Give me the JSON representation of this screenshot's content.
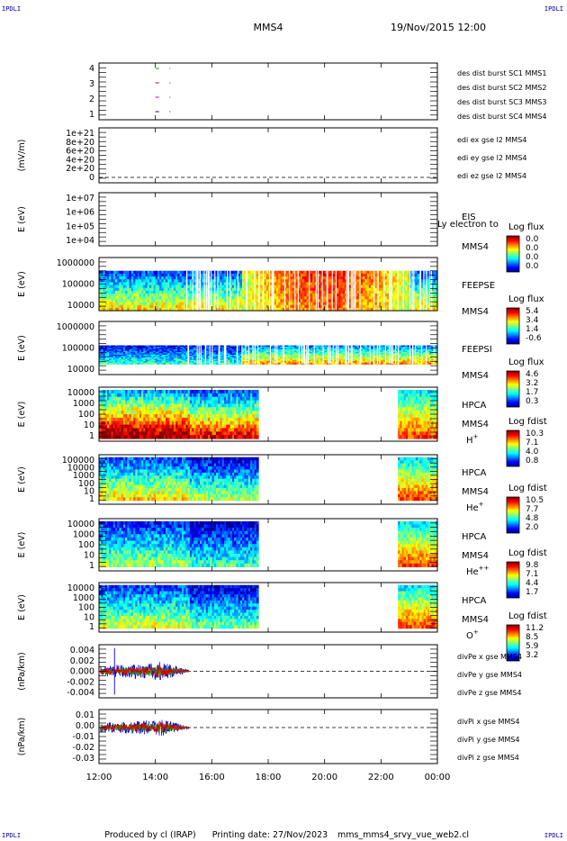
{
  "header": {
    "corner_tag": "IPDLI",
    "spacecraft": "MMS4",
    "date_time": "19/Nov/2015 12:00"
  },
  "footer": {
    "producer": "Produced by cl (IRAP)",
    "printing_date": "Printing date: 27/Nov/2023",
    "filename": "mms_mms4_srvy_vue_web2.cl"
  },
  "colors": {
    "mms1": "#0000cc",
    "mms2": "#cc00cc",
    "mms3": "#cc0000",
    "mms4": "#00aa00",
    "x_comp": "#dd0000",
    "y_comp": "#00bb00",
    "z_comp": "#0000cc"
  },
  "chart_data": {
    "type": "multi-panel time series",
    "x_ticks": [
      "12:00",
      "14:00",
      "16:00",
      "18:00",
      "20:00",
      "22:00",
      "00:00"
    ],
    "panels": [
      {
        "id": "burst",
        "ylabel": "",
        "yticks": [
          "4",
          "3",
          "2",
          "1"
        ],
        "legend": [
          {
            "text": "des dist burst SC1 MMS1",
            "color": "#0000cc"
          },
          {
            "text": "des dist burst SC2 MMS2",
            "color": "#cc00cc"
          },
          {
            "text": "des dist burst SC3 MMS3",
            "color": "#cc0000"
          },
          {
            "text": "des dist burst SC4 MMS4",
            "color": "#00aa00"
          }
        ],
        "marks": [
          {
            "sc": 4,
            "t": [
              14.0,
              14.5
            ]
          },
          {
            "sc": 3,
            "t": [
              14.0,
              14.5
            ]
          },
          {
            "sc": 2,
            "t": [
              14.0,
              14.5
            ]
          },
          {
            "sc": 1,
            "t": [
              14.0,
              14.5
            ]
          }
        ]
      },
      {
        "id": "edi",
        "ylabel": "(mV/m)",
        "yticks": [
          "1e+21",
          "8e+20",
          "6e+20",
          "4e+20",
          "2e+20",
          "0"
        ],
        "legend": [
          {
            "text": "edi ex gse l2 MMS4",
            "color": "#dd0000"
          },
          {
            "text": "edi ey gse l2 MMS4",
            "color": "#00bb00"
          },
          {
            "text": "edi ez gse l2 MMS4",
            "color": "#0000cc"
          }
        ]
      },
      {
        "id": "eis",
        "ylabel": "E (eV)",
        "yticks": [
          "1e+07",
          "1e+06",
          "1e+05",
          "1e+04"
        ],
        "right_labels": [
          "EIS",
          "MMS4"
        ],
        "overlay_text": "Ly electron to",
        "colorbar": {
          "title": "Log flux",
          "ticks": [
            "0.0",
            "0.0",
            "0.0",
            "0.0"
          ]
        }
      },
      {
        "id": "feepse",
        "ylabel": "E (eV)",
        "yticks": [
          "1000000",
          "100000",
          "10000"
        ],
        "right_labels": [
          "FEEPSE",
          "MMS4"
        ],
        "colorbar": {
          "title": "Log flux",
          "ticks": [
            "5.4",
            "3.4",
            "1.4",
            "-0.6"
          ]
        }
      },
      {
        "id": "feepsi",
        "ylabel": "E (eV)",
        "yticks": [
          "1000000",
          "100000",
          "10000"
        ],
        "right_labels": [
          "FEEPSI",
          "MMS4"
        ],
        "colorbar": {
          "title": "Log flux",
          "ticks": [
            "4.6",
            "3.2",
            "1.7",
            "0.3"
          ]
        }
      },
      {
        "id": "hpca_h",
        "ylabel": "E (eV)",
        "yticks": [
          "10000",
          "1000",
          "100",
          "10",
          "1"
        ],
        "right_labels": [
          "HPCA",
          "MMS4"
        ],
        "species": {
          "base": "H",
          "sup": "+"
        },
        "colorbar": {
          "title": "Log fdist",
          "ticks": [
            "10.3",
            "7.1",
            "4.0",
            "0.8"
          ]
        }
      },
      {
        "id": "hpca_he",
        "ylabel": "E (eV)",
        "yticks": [
          "100000",
          "10000",
          "1000",
          "100",
          "10",
          "1"
        ],
        "right_labels": [
          "HPCA",
          "MMS4"
        ],
        "species": {
          "base": "He",
          "sup": "+"
        },
        "colorbar": {
          "title": "Log fdist",
          "ticks": [
            "10.5",
            "7.7",
            "4.8",
            "2.0"
          ]
        }
      },
      {
        "id": "hpca_hepp",
        "ylabel": "E (eV)",
        "yticks": [
          "10000",
          "1000",
          "100",
          "10",
          "1"
        ],
        "right_labels": [
          "HPCA",
          "MMS4"
        ],
        "species": {
          "base": "He",
          "sup": "++"
        },
        "colorbar": {
          "title": "Log fdist",
          "ticks": [
            "9.8",
            "7.1",
            "4.4",
            "1.7"
          ]
        }
      },
      {
        "id": "hpca_o",
        "ylabel": "E (eV)",
        "yticks": [
          "10000",
          "1000",
          "100",
          "10",
          "1"
        ],
        "right_labels": [
          "HPCA",
          "MMS4"
        ],
        "species": {
          "base": "O",
          "sup": "+"
        },
        "colorbar": {
          "title": "Log fdist",
          "ticks": [
            "11.2",
            "8.5",
            "5.9",
            "3.2"
          ]
        }
      },
      {
        "id": "divpe",
        "ylabel": "(nPa/km)",
        "yticks": [
          "0.004",
          "0.002",
          "0.000",
          "-0.002",
          "-0.004"
        ],
        "ylim": [
          -0.004,
          0.004
        ],
        "legend": [
          {
            "text": "divPe x gse MMS4",
            "color": "#dd0000"
          },
          {
            "text": "divPe y gse MMS4",
            "color": "#00bb00"
          },
          {
            "text": "divPe z gse MMS4",
            "color": "#0000cc"
          }
        ]
      },
      {
        "id": "divpi",
        "ylabel": "(nPa/km)",
        "yticks": [
          "0.01",
          "0.00",
          "-0.01",
          "-0.02",
          "-0.03"
        ],
        "ylim": [
          -0.03,
          0.015
        ],
        "legend": [
          {
            "text": "divPi x gse MMS4",
            "color": "#dd0000"
          },
          {
            "text": "divPi y gse MMS4",
            "color": "#00bb00"
          },
          {
            "text": "divPi z gse MMS4",
            "color": "#0000cc"
          }
        ]
      }
    ]
  }
}
